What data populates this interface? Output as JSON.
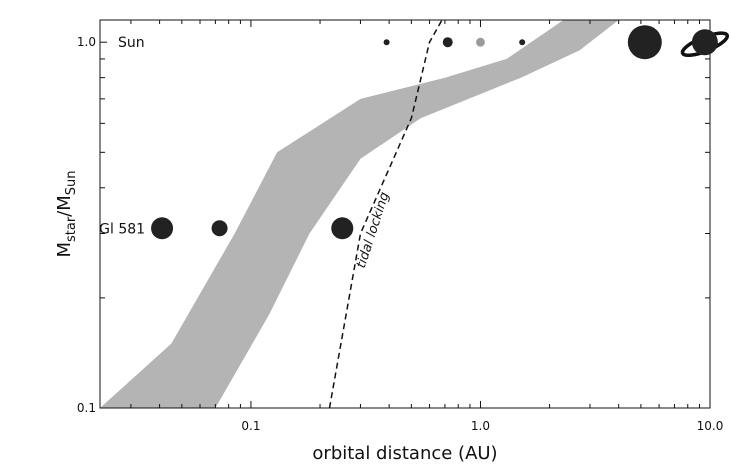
{
  "chart_data": {
    "type": "scatter",
    "title": "",
    "xlabel": "orbital distance (AU)",
    "ylabel": {
      "main": "M",
      "sub1": "star",
      "sep": "/M",
      "sub2": "Sun"
    },
    "x_scale": "log",
    "y_scale": "log",
    "xlim": [
      0.022,
      10.0
    ],
    "ylim": [
      0.1,
      1.15
    ],
    "x_tick_labels": [
      {
        "value": 0.1,
        "label": "0.1"
      },
      {
        "value": 1.0,
        "label": "1.0"
      },
      {
        "value": 10.0,
        "label": "10.0"
      }
    ],
    "y_tick_labels": [
      {
        "value": 0.1,
        "label": "0.1"
      },
      {
        "value": 1.0,
        "label": "1.0"
      }
    ],
    "habitable_zone": {
      "color": "#b4b4b4",
      "inner_edge": [
        [
          0.022,
          0.1
        ],
        [
          0.045,
          0.15
        ],
        [
          0.085,
          0.3
        ],
        [
          0.13,
          0.5
        ],
        [
          0.3,
          0.7
        ],
        [
          0.7,
          0.8
        ],
        [
          1.3,
          0.9
        ],
        [
          2.3,
          1.15
        ]
      ],
      "outer_edge": [
        [
          0.07,
          0.1
        ],
        [
          0.12,
          0.18
        ],
        [
          0.18,
          0.3
        ],
        [
          0.3,
          0.48
        ],
        [
          0.55,
          0.62
        ],
        [
          1.5,
          0.8
        ],
        [
          2.7,
          0.95
        ],
        [
          4.0,
          1.15
        ]
      ]
    },
    "tidal_locking": {
      "label": "tidal locking",
      "points": [
        [
          0.22,
          0.1
        ],
        [
          0.3,
          0.3
        ],
        [
          0.5,
          0.62
        ],
        [
          0.6,
          1.0
        ],
        [
          0.68,
          1.15
        ]
      ]
    },
    "systems": [
      {
        "label": "Sun",
        "mass": 1.0,
        "planets": [
          {
            "a": 0.39,
            "size": "xs",
            "color": "#222222"
          },
          {
            "a": 0.72,
            "size": "s",
            "color": "#222222"
          },
          {
            "a": 1.0,
            "size": "s",
            "color": "#9a9a9a",
            "ring": "#ffffff"
          },
          {
            "a": 1.52,
            "size": "xs",
            "color": "#222222"
          },
          {
            "a": 5.2,
            "size": "xl",
            "color": "#222222"
          },
          {
            "a": 9.5,
            "size": "l",
            "color": "#222222",
            "saturn_ring": true
          }
        ]
      },
      {
        "label": "Gl 581",
        "mass": 0.31,
        "planets": [
          {
            "a": 0.041,
            "size": "m",
            "color": "#222222"
          },
          {
            "a": 0.073,
            "size": "ms",
            "color": "#222222"
          },
          {
            "a": 0.25,
            "size": "m",
            "color": "#222222"
          }
        ]
      }
    ]
  }
}
